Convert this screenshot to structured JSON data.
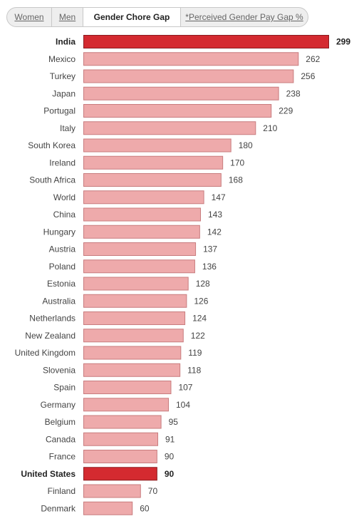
{
  "tabs": [
    {
      "label": "Women",
      "active": false
    },
    {
      "label": "Men",
      "active": false
    },
    {
      "label": "Gender Chore Gap",
      "active": true
    },
    {
      "label": "*Perceived Gender Pay Gap %",
      "active": false
    }
  ],
  "colors": {
    "bar": "#eeaaab",
    "bar_border": "#c87c7e",
    "highlight": "#d42a30",
    "highlight_border": "#8b1a1e"
  },
  "chart_data": {
    "type": "bar",
    "orientation": "horizontal",
    "categories": [
      "India",
      "Mexico",
      "Turkey",
      "Japan",
      "Portugal",
      "Italy",
      "South Korea",
      "Ireland",
      "South Africa",
      "World",
      "China",
      "Hungary",
      "Austria",
      "Poland",
      "Estonia",
      "Australia",
      "Netherlands",
      "New Zealand",
      "United Kingdom",
      "Slovenia",
      "Spain",
      "Germany",
      "Belgium",
      "Canada",
      "France",
      "United States",
      "Finland",
      "Denmark"
    ],
    "values": [
      299,
      262,
      256,
      238,
      229,
      210,
      180,
      170,
      168,
      147,
      143,
      142,
      137,
      136,
      128,
      126,
      124,
      122,
      119,
      118,
      107,
      104,
      95,
      91,
      90,
      90,
      70,
      60
    ],
    "highlighted": [
      "India",
      "United States"
    ],
    "xlim": [
      0,
      299
    ],
    "grid": false,
    "legend": "none"
  }
}
